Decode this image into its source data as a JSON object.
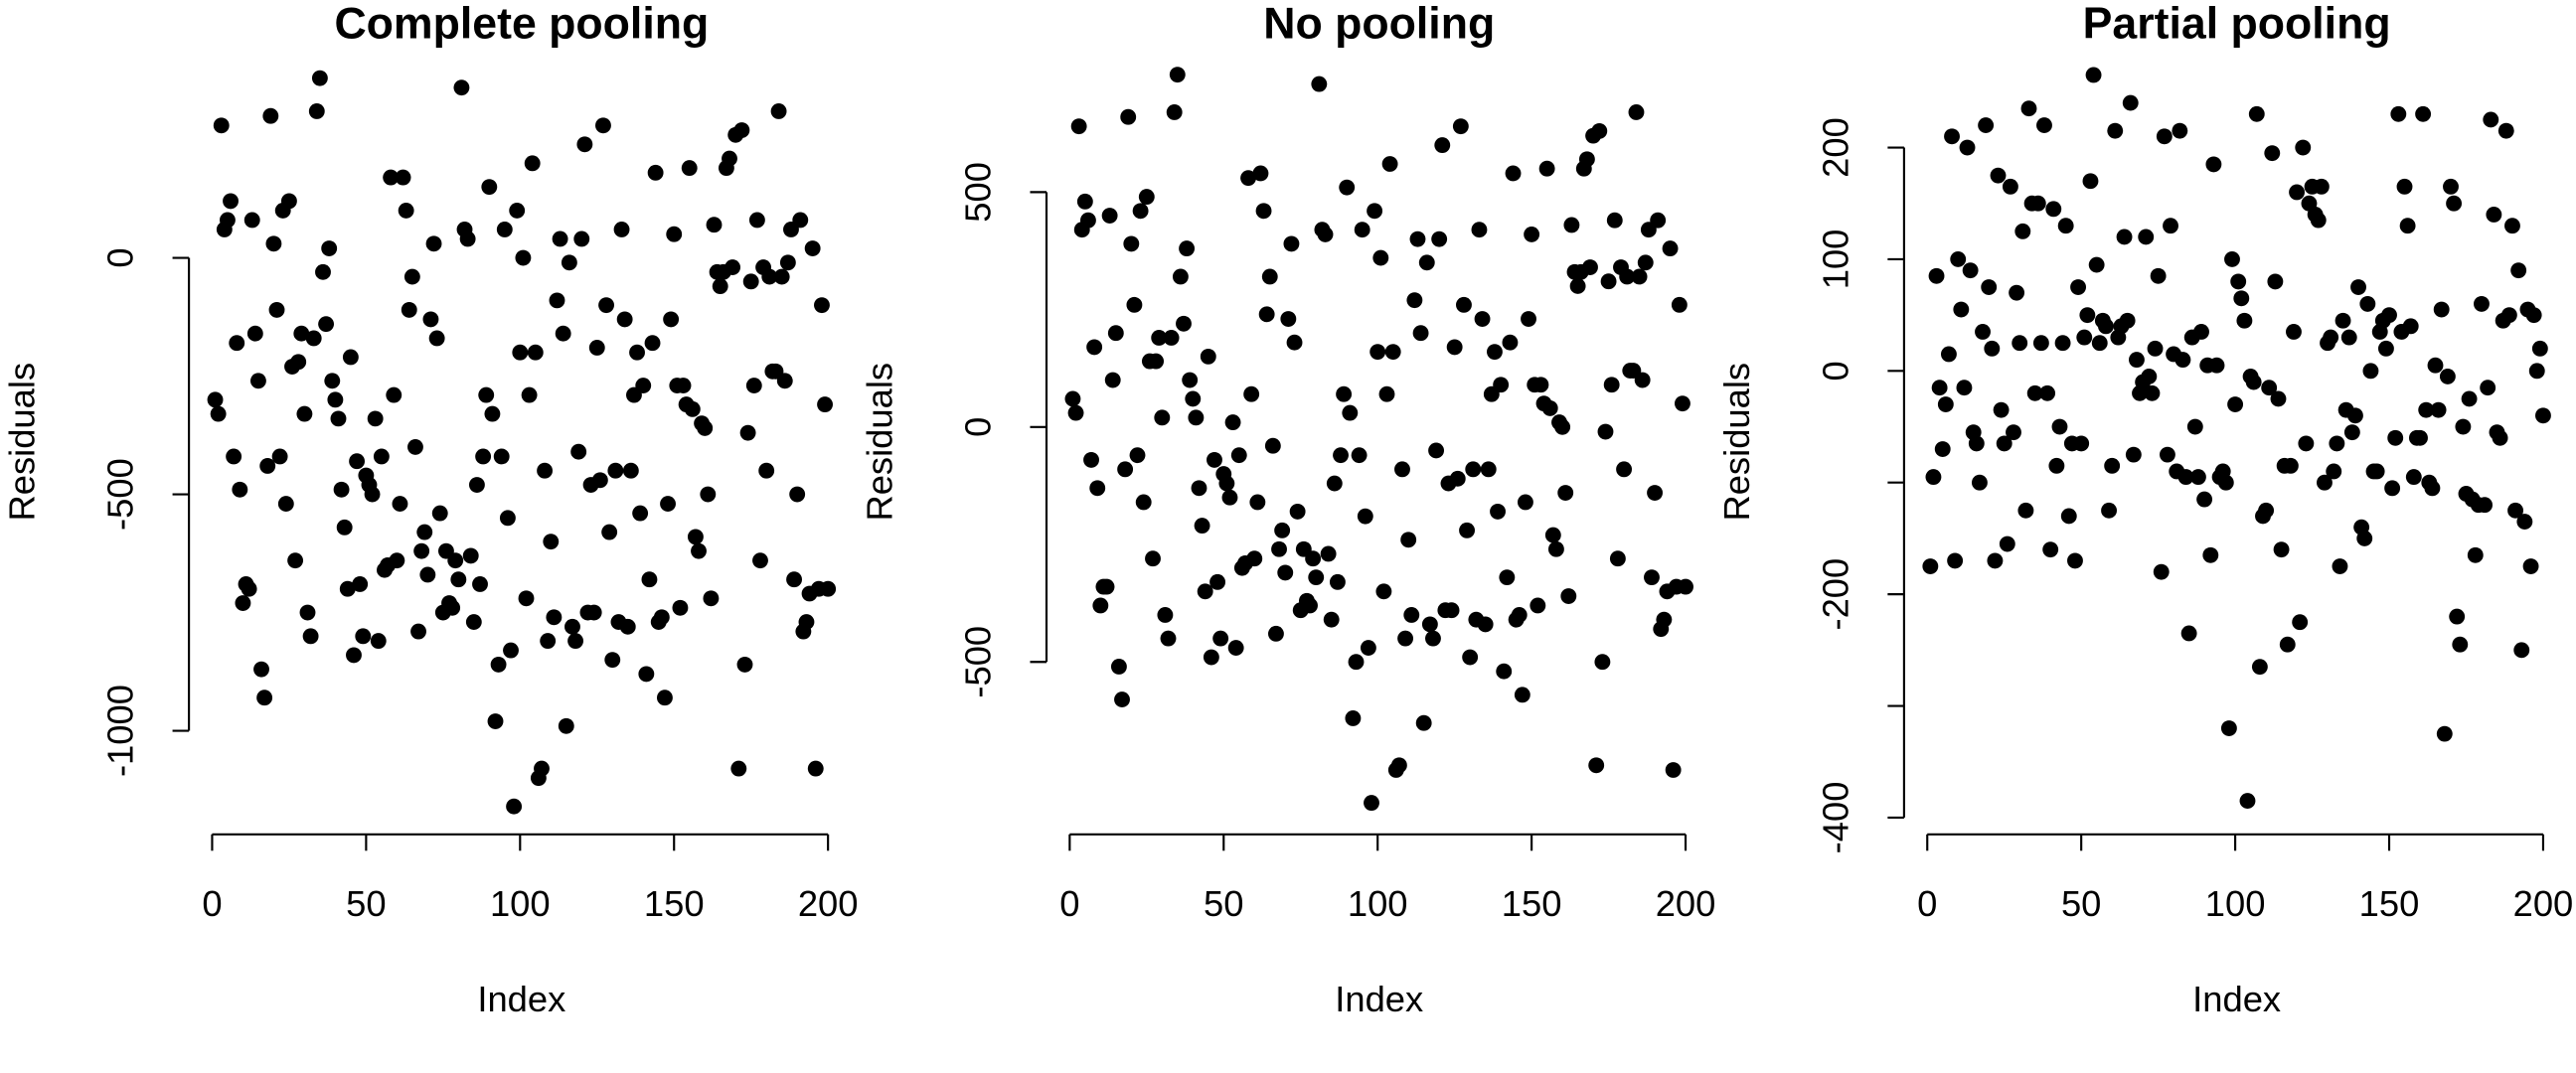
{
  "chart_data": [
    {
      "type": "scatter",
      "title": "Complete pooling",
      "xlabel": "Index",
      "ylabel": "Residuals",
      "color": "#000000",
      "xlim": [
        -7,
        208
      ],
      "ylim": [
        -1219,
        441
      ],
      "xticks": [
        0,
        50,
        100,
        150,
        200
      ],
      "yticks": [
        -1000,
        -500,
        0
      ],
      "x": [
        1,
        2,
        3,
        4,
        5,
        6,
        7,
        8,
        9,
        10,
        11,
        12,
        13,
        14,
        15,
        16,
        17,
        18,
        19,
        20,
        21,
        22,
        23,
        24,
        25,
        26,
        27,
        28,
        29,
        30,
        31,
        32,
        33,
        34,
        35,
        36,
        37,
        38,
        39,
        40,
        41,
        42,
        43,
        44,
        45,
        46,
        47,
        48,
        49,
        50,
        51,
        52,
        53,
        54,
        55,
        56,
        57,
        58,
        59,
        60,
        61,
        62,
        63,
        64,
        65,
        66,
        67,
        68,
        69,
        70,
        71,
        72,
        73,
        74,
        75,
        76,
        77,
        78,
        79,
        80,
        81,
        82,
        83,
        84,
        85,
        86,
        87,
        88,
        89,
        90,
        91,
        92,
        93,
        94,
        95,
        96,
        97,
        98,
        99,
        100,
        101,
        102,
        103,
        104,
        105,
        106,
        107,
        108,
        109,
        110,
        111,
        112,
        113,
        114,
        115,
        116,
        117,
        118,
        119,
        120,
        121,
        122,
        123,
        124,
        125,
        126,
        127,
        128,
        129,
        130,
        131,
        132,
        133,
        134,
        135,
        136,
        137,
        138,
        139,
        140,
        141,
        142,
        143,
        144,
        145,
        146,
        147,
        148,
        149,
        150,
        151,
        152,
        153,
        154,
        155,
        156,
        157,
        158,
        159,
        160,
        161,
        162,
        163,
        164,
        165,
        166,
        167,
        168,
        169,
        170,
        171,
        172,
        173,
        174,
        175,
        176,
        177,
        178,
        179,
        180,
        181,
        182,
        183,
        184,
        185,
        186,
        187,
        188,
        189,
        190,
        191,
        192,
        193,
        194,
        195,
        196,
        197,
        198,
        199,
        200
      ],
      "values": [
        -300,
        -330,
        280,
        60,
        80,
        120,
        -420,
        -180,
        -490,
        -730,
        -690,
        -700,
        80,
        -160,
        -260,
        -870,
        -930,
        -440,
        300,
        30,
        -110,
        -420,
        100,
        -520,
        120,
        -230,
        -640,
        -220,
        -160,
        -330,
        -750,
        -800,
        -170,
        310,
        380,
        -30,
        -140,
        20,
        -260,
        -300,
        -340,
        -490,
        -570,
        -700,
        -210,
        -840,
        -430,
        -690,
        -800,
        -460,
        -480,
        -500,
        -340,
        -810,
        -420,
        -660,
        -650,
        170,
        -290,
        -640,
        -520,
        170,
        100,
        -110,
        -40,
        -400,
        -790,
        -620,
        -580,
        -670,
        -130,
        30,
        -170,
        -540,
        -750,
        -620,
        -730,
        -740,
        -640,
        -680,
        360,
        60,
        40,
        -630,
        -770,
        -480,
        -690,
        -420,
        -290,
        150,
        -330,
        -980,
        -860,
        -420,
        60,
        -550,
        -830,
        -1160,
        100,
        -200,
        0,
        -720,
        -290,
        200,
        -200,
        -1100,
        -1080,
        -450,
        -810,
        -600,
        -760,
        -90,
        40,
        -160,
        -990,
        -10,
        -780,
        -810,
        -410,
        40,
        240,
        -750,
        -480,
        -750,
        -190,
        -470,
        280,
        -100,
        -580,
        -850,
        -450,
        -770,
        60,
        -130,
        -780,
        -450,
        -290,
        -200,
        -540,
        -270,
        -880,
        -680,
        -180,
        180,
        -770,
        -760,
        -930,
        -520,
        -130,
        50,
        -270,
        -740,
        -270,
        -310,
        190,
        -320,
        -590,
        -620,
        -350,
        -360,
        -500,
        -720,
        70,
        -30,
        -60,
        -30,
        190,
        210,
        -20,
        260,
        -1080,
        270,
        -860,
        -370,
        -50,
        -270,
        80,
        -640,
        -20,
        -450,
        -40,
        -240,
        -240,
        310,
        -40,
        -260,
        -10,
        60,
        -680,
        -500,
        80,
        -790,
        -770,
        -710,
        20,
        -1080,
        -700,
        -100,
        -310,
        -700
      ]
    },
    {
      "type": "scatter",
      "title": "No pooling",
      "xlabel": "Index",
      "ylabel": "Residuals",
      "color": "#000000",
      "xlim": [
        -7,
        208
      ],
      "ylim": [
        -867,
        804
      ],
      "xticks": [
        0,
        50,
        100,
        150,
        200
      ],
      "yticks": [
        -500,
        0,
        500
      ],
      "x": [
        1,
        2,
        3,
        4,
        5,
        6,
        7,
        8,
        9,
        10,
        11,
        12,
        13,
        14,
        15,
        16,
        17,
        18,
        19,
        20,
        21,
        22,
        23,
        24,
        25,
        26,
        27,
        28,
        29,
        30,
        31,
        32,
        33,
        34,
        35,
        36,
        37,
        38,
        39,
        40,
        41,
        42,
        43,
        44,
        45,
        46,
        47,
        48,
        49,
        50,
        51,
        52,
        53,
        54,
        55,
        56,
        57,
        58,
        59,
        60,
        61,
        62,
        63,
        64,
        65,
        66,
        67,
        68,
        69,
        70,
        71,
        72,
        73,
        74,
        75,
        76,
        77,
        78,
        79,
        80,
        81,
        82,
        83,
        84,
        85,
        86,
        87,
        88,
        89,
        90,
        91,
        92,
        93,
        94,
        95,
        96,
        97,
        98,
        99,
        100,
        101,
        102,
        103,
        104,
        105,
        106,
        107,
        108,
        109,
        110,
        111,
        112,
        113,
        114,
        115,
        116,
        117,
        118,
        119,
        120,
        121,
        122,
        123,
        124,
        125,
        126,
        127,
        128,
        129,
        130,
        131,
        132,
        133,
        134,
        135,
        136,
        137,
        138,
        139,
        140,
        141,
        142,
        143,
        144,
        145,
        146,
        147,
        148,
        149,
        150,
        151,
        152,
        153,
        154,
        155,
        156,
        157,
        158,
        159,
        160,
        161,
        162,
        163,
        164,
        165,
        166,
        167,
        168,
        169,
        170,
        171,
        172,
        173,
        174,
        175,
        176,
        177,
        178,
        179,
        180,
        181,
        182,
        183,
        184,
        185,
        186,
        187,
        188,
        189,
        190,
        191,
        192,
        193,
        194,
        195,
        196,
        197,
        198,
        199,
        200
      ],
      "values": [
        60,
        30,
        640,
        420,
        480,
        440,
        -70,
        170,
        -130,
        -380,
        -340,
        -340,
        450,
        100,
        200,
        -510,
        -580,
        -90,
        660,
        390,
        260,
        -60,
        460,
        -160,
        490,
        140,
        -280,
        140,
        190,
        20,
        -400,
        -450,
        190,
        670,
        750,
        320,
        220,
        380,
        100,
        60,
        20,
        -130,
        -210,
        -350,
        150,
        -490,
        -70,
        -330,
        -450,
        -100,
        -120,
        -150,
        10,
        -470,
        -60,
        -300,
        -290,
        530,
        70,
        -280,
        -160,
        540,
        460,
        240,
        320,
        -40,
        -440,
        -260,
        -220,
        -310,
        230,
        390,
        180,
        -180,
        -390,
        -260,
        -370,
        -380,
        -280,
        -320,
        730,
        420,
        410,
        -270,
        -410,
        -120,
        -330,
        -60,
        70,
        510,
        30,
        -620,
        -500,
        -60,
        420,
        -190,
        -470,
        -800,
        460,
        160,
        360,
        -350,
        70,
        560,
        160,
        -730,
        -720,
        -90,
        -450,
        -240,
        -400,
        270,
        400,
        200,
        -630,
        350,
        -420,
        -450,
        -50,
        400,
        600,
        -390,
        -120,
        -390,
        170,
        -110,
        640,
        260,
        -220,
        -490,
        -90,
        -410,
        420,
        230,
        -420,
        -90,
        70,
        160,
        -180,
        90,
        -520,
        -320,
        180,
        540,
        -410,
        -400,
        -570,
        -160,
        230,
        410,
        90,
        -380,
        90,
        50,
        550,
        40,
        -230,
        -260,
        10,
        0,
        -140,
        -360,
        430,
        330,
        300,
        330,
        550,
        570,
        340,
        620,
        -720,
        630,
        -500,
        -10,
        310,
        90,
        440,
        -280,
        340,
        -90,
        320,
        120,
        120,
        670,
        320,
        100,
        350,
        420,
        -320,
        -140,
        440,
        -430,
        -410,
        -350,
        380,
        -730,
        -340,
        260,
        50,
        -340
      ]
    },
    {
      "type": "scatter",
      "title": "Partial pooling",
      "xlabel": "Index",
      "ylabel": "Residuals",
      "color": "#000000",
      "xlim": [
        -7,
        208
      ],
      "ylim": [
        -415,
        288
      ],
      "xticks": [
        0,
        50,
        100,
        150,
        200
      ],
      "yticks": [
        -400,
        {
          "value": -300,
          "label": null
        },
        -200,
        {
          "value": -100,
          "label": null
        },
        0,
        100,
        200
      ],
      "x": [
        1,
        2,
        3,
        4,
        5,
        6,
        7,
        8,
        9,
        10,
        11,
        12,
        13,
        14,
        15,
        16,
        17,
        18,
        19,
        20,
        21,
        22,
        23,
        24,
        25,
        26,
        27,
        28,
        29,
        30,
        31,
        32,
        33,
        34,
        35,
        36,
        37,
        38,
        39,
        40,
        41,
        42,
        43,
        44,
        45,
        46,
        47,
        48,
        49,
        50,
        51,
        52,
        53,
        54,
        55,
        56,
        57,
        58,
        59,
        60,
        61,
        62,
        63,
        64,
        65,
        66,
        67,
        68,
        69,
        70,
        71,
        72,
        73,
        74,
        75,
        76,
        77,
        78,
        79,
        80,
        81,
        82,
        83,
        84,
        85,
        86,
        87,
        88,
        89,
        90,
        91,
        92,
        93,
        94,
        95,
        96,
        97,
        98,
        99,
        100,
        101,
        102,
        103,
        104,
        105,
        106,
        107,
        108,
        109,
        110,
        111,
        112,
        113,
        114,
        115,
        116,
        117,
        118,
        119,
        120,
        121,
        122,
        123,
        124,
        125,
        126,
        127,
        128,
        129,
        130,
        131,
        132,
        133,
        134,
        135,
        136,
        137,
        138,
        139,
        140,
        141,
        142,
        143,
        144,
        145,
        146,
        147,
        148,
        149,
        150,
        151,
        152,
        153,
        154,
        155,
        156,
        157,
        158,
        159,
        160,
        161,
        162,
        163,
        164,
        165,
        166,
        167,
        168,
        169,
        170,
        171,
        172,
        173,
        174,
        175,
        176,
        177,
        178,
        179,
        180,
        181,
        182,
        183,
        184,
        185,
        186,
        187,
        188,
        189,
        190,
        191,
        192,
        193,
        194,
        195,
        196,
        197,
        198,
        199,
        200
      ],
      "values": [
        -175,
        -95,
        85,
        -15,
        -70,
        -30,
        15,
        210,
        -170,
        100,
        55,
        -15,
        200,
        90,
        -55,
        -65,
        -100,
        35,
        220,
        75,
        20,
        -170,
        175,
        -35,
        -65,
        -155,
        165,
        -55,
        70,
        25,
        125,
        -125,
        235,
        150,
        -20,
        150,
        25,
        220,
        -20,
        -160,
        145,
        -85,
        -50,
        25,
        130,
        -130,
        -65,
        -170,
        75,
        -65,
        30,
        50,
        170,
        265,
        95,
        25,
        45,
        40,
        -125,
        -85,
        215,
        30,
        40,
        120,
        45,
        240,
        -75,
        10,
        -20,
        -10,
        120,
        -5,
        -20,
        20,
        85,
        -180,
        210,
        -75,
        130,
        15,
        -90,
        215,
        10,
        -95,
        -235,
        30,
        -50,
        -95,
        35,
        -115,
        5,
        -165,
        185,
        5,
        -95,
        -90,
        -100,
        -320,
        100,
        -30,
        80,
        65,
        45,
        -385,
        -5,
        -10,
        230,
        -265,
        -130,
        -125,
        -15,
        195,
        80,
        -25,
        -160,
        -85,
        -245,
        -85,
        35,
        160,
        -225,
        200,
        -65,
        150,
        165,
        140,
        135,
        165,
        -100,
        25,
        30,
        -90,
        -65,
        -175,
        45,
        -35,
        30,
        -55,
        -40,
        75,
        -140,
        -150,
        60,
        0,
        -90,
        -90,
        35,
        45,
        20,
        50,
        -105,
        -60,
        230,
        35,
        165,
        130,
        40,
        -95,
        -60,
        -60,
        230,
        -35,
        -100,
        -105,
        5,
        -35,
        55,
        -325,
        -5,
        165,
        150,
        -220,
        -245,
        -50,
        -110,
        -25,
        -115,
        -165,
        -120,
        60,
        -120,
        -15,
        225,
        140,
        -55,
        -60,
        45,
        215,
        50,
        130,
        -125,
        90,
        -250,
        -135,
        55,
        -175,
        50,
        0,
        20,
        -40
      ]
    }
  ]
}
